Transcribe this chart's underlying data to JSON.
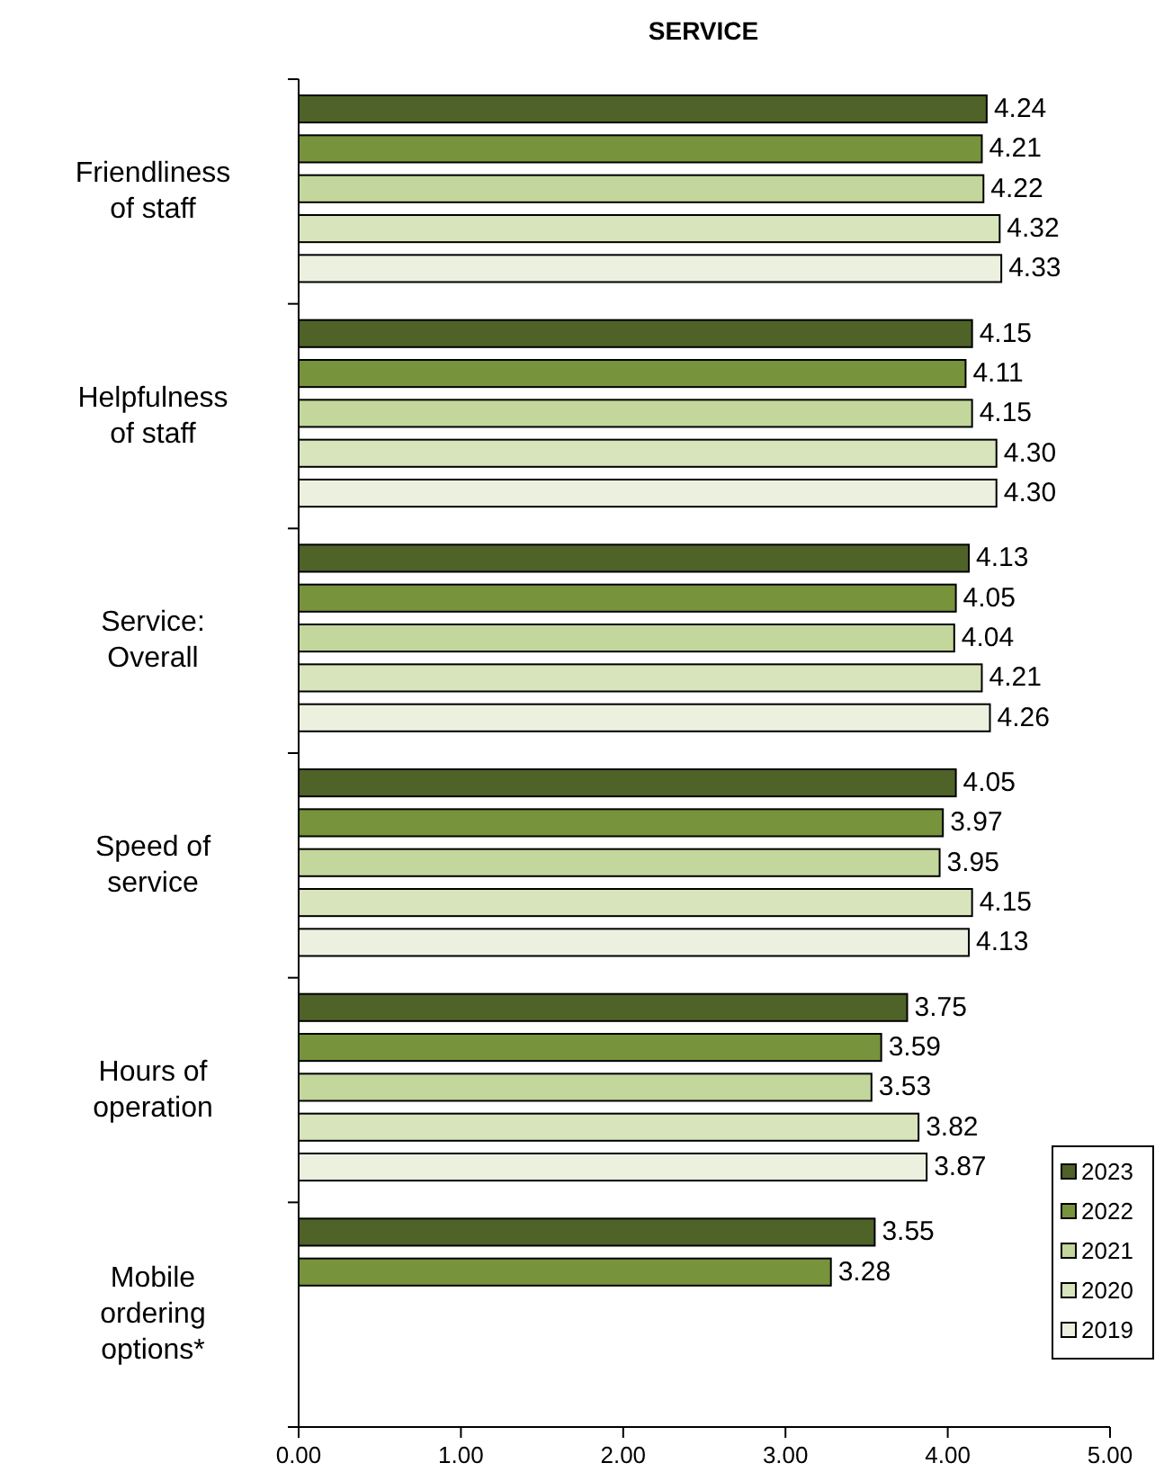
{
  "chart_data": {
    "type": "bar",
    "orientation": "horizontal",
    "title": "SERVICE",
    "categories": [
      "Friendliness of staff",
      "Helpfulness of staff",
      "Service: Overall",
      "Speed of service",
      "Hours of operation",
      "Mobile ordering options*"
    ],
    "series": [
      {
        "name": "2023",
        "color": "#4f6228",
        "values": [
          4.24,
          4.15,
          4.13,
          4.05,
          3.75,
          3.55
        ],
        "value_labels": [
          "4.24",
          "4.15",
          "4.13",
          "4.05",
          "3.75",
          "3.55"
        ]
      },
      {
        "name": "2022",
        "color": "#77933c",
        "values": [
          4.21,
          4.11,
          4.05,
          3.97,
          3.59,
          3.28
        ],
        "value_labels": [
          "4.21",
          "4.11",
          "4.05",
          "3.97",
          "3.59",
          "3.28"
        ]
      },
      {
        "name": "2021",
        "color": "#c3d69b",
        "values": [
          4.22,
          4.15,
          4.04,
          3.95,
          3.53,
          null
        ],
        "value_labels": [
          "4.22",
          "4.15",
          "4.04",
          "3.95",
          "3.53",
          null
        ]
      },
      {
        "name": "2020",
        "color": "#d7e4bc",
        "values": [
          4.32,
          4.3,
          4.21,
          4.15,
          3.82,
          null
        ],
        "value_labels": [
          "4.32",
          "4.30",
          "4.21",
          "4.15",
          "3.82",
          null
        ]
      },
      {
        "name": "2019",
        "color": "#ebf1de",
        "values": [
          4.33,
          4.3,
          4.26,
          4.13,
          3.87,
          null
        ],
        "value_labels": [
          "4.33",
          "4.30",
          "4.26",
          "4.13",
          "3.87",
          null
        ]
      }
    ],
    "xlim": [
      0,
      5
    ],
    "xticks": [
      {
        "value": 0,
        "label": "0.00"
      },
      {
        "value": 1,
        "label": "1.00"
      },
      {
        "value": 2,
        "label": "2.00"
      },
      {
        "value": 3,
        "label": "3.00"
      },
      {
        "value": 4,
        "label": "4.00"
      },
      {
        "value": 5,
        "label": "5.00"
      }
    ],
    "grid": false,
    "legend": "bottom right"
  }
}
